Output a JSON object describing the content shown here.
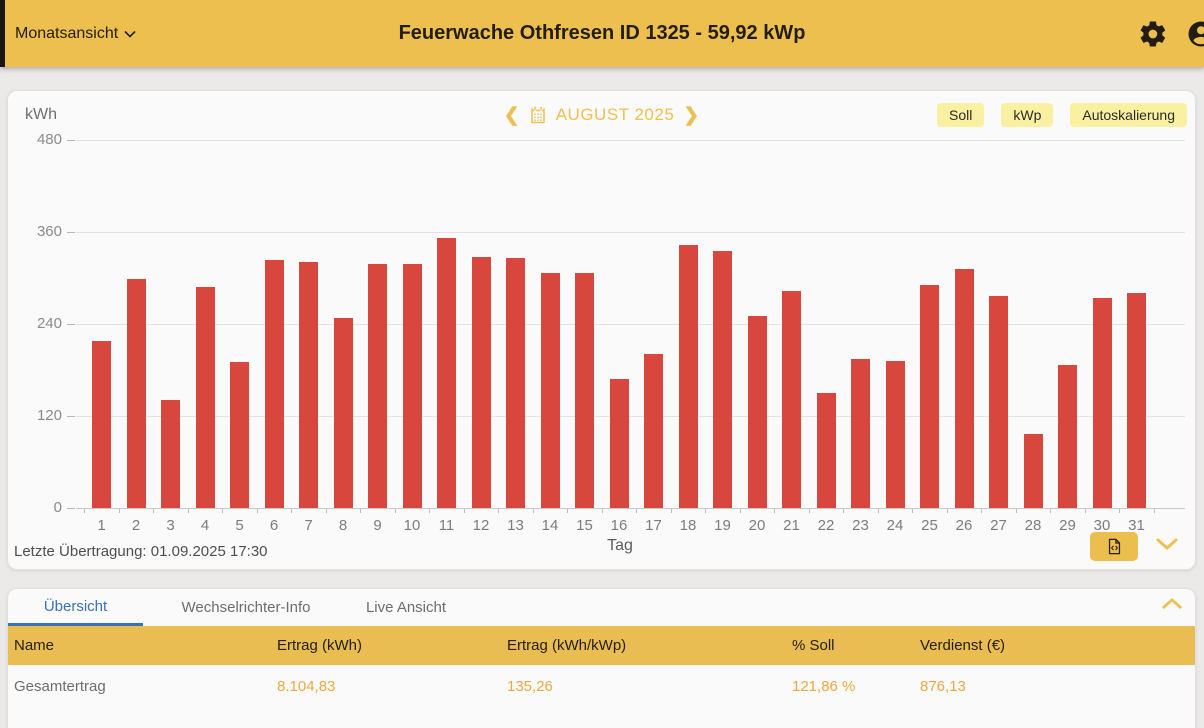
{
  "header": {
    "view_selector_label": "Monatsansicht",
    "title": "Feuerwache Othfresen ID 1325 - 59,92 kWp"
  },
  "chart": {
    "month_label": "AUGUST 2025",
    "soll_button": "Soll",
    "kwp_button": "kWp",
    "autoscale_button": "Autoskalierung",
    "last_transmission": "Letzte Übertragung: 01.09.2025 17:30"
  },
  "chart_data": {
    "type": "bar",
    "title": "AUGUST 2025",
    "xlabel": "Tag",
    "ylabel": "kWh",
    "ylim": [
      0,
      480
    ],
    "yticks": [
      0,
      120,
      240,
      360,
      480
    ],
    "categories": [
      1,
      2,
      3,
      4,
      5,
      6,
      7,
      8,
      9,
      10,
      11,
      12,
      13,
      14,
      15,
      16,
      17,
      18,
      19,
      20,
      21,
      22,
      23,
      24,
      25,
      26,
      27,
      28,
      29,
      30,
      31
    ],
    "values": [
      218,
      299,
      141,
      288,
      190,
      324,
      321,
      248,
      318,
      318,
      352,
      328,
      326,
      307,
      307,
      168,
      201,
      343,
      335,
      250,
      283,
      150,
      195,
      192,
      291,
      312,
      277,
      97,
      186,
      274,
      280
    ],
    "bar_color": "#d8473d",
    "grid": true,
    "legend": "none"
  },
  "tabs": {
    "overview": "Übersicht",
    "inverter_info": "Wechselrichter-Info",
    "live_view": "Live Ansicht"
  },
  "table": {
    "columns": [
      "Name",
      "Ertrag (kWh)",
      "Ertrag (kWh/kWp)",
      "% Soll",
      "Verdienst (€)"
    ],
    "rows": [
      {
        "name": "Gesamtertrag",
        "ertrag_kwh": "8.104,83",
        "ertrag_kwh_kwp": "135,26",
        "soll_pct": "121,86 %",
        "verdienst_eur": "876,13"
      }
    ]
  },
  "colors": {
    "header_gold": "#edbf4f",
    "table_header_gold": "#eabd52",
    "pale_yellow_button": "#f9f1a1",
    "bar_red": "#d8473d",
    "accent_text_gold": "#edc053",
    "value_orange": "#e9a940",
    "active_tab_blue": "#3a70b7"
  }
}
